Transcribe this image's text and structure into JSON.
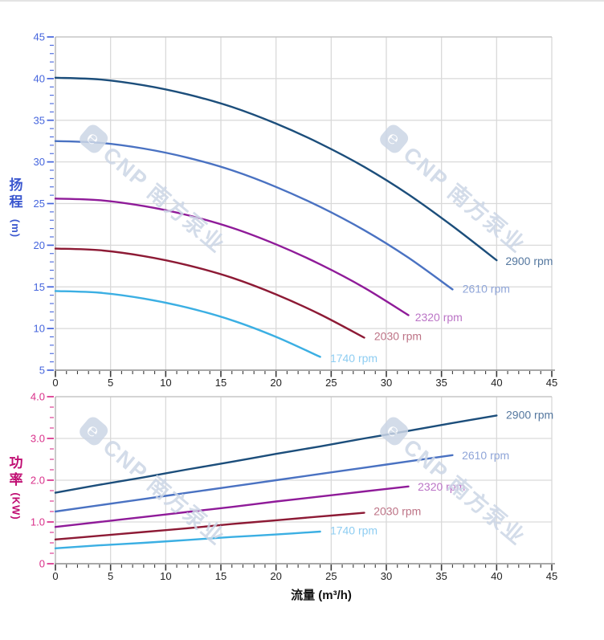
{
  "watermark": {
    "text": "CNP 南方泵业",
    "color": "#ccd6e6"
  },
  "chart_data": [
    {
      "type": "line",
      "id": "head",
      "title": "",
      "xlabel": "流量 (m³/h)",
      "ylabel": "扬程 (m)",
      "y_axis_title": {
        "char1": "扬",
        "char2": "程",
        "unit": "(m)",
        "color": "#3b57cf"
      },
      "xlim": [
        0,
        45
      ],
      "ylim": [
        5,
        45
      ],
      "grid": true,
      "legend_position": "inline-end-of-curve",
      "x_axis": {
        "minor_step": 1,
        "label_color": "#222222",
        "major_ticks": [
          {
            "value": 0,
            "label": "0"
          },
          {
            "value": 5,
            "label": "5"
          },
          {
            "value": 10,
            "label": "10"
          },
          {
            "value": 15,
            "label": "15"
          },
          {
            "value": 20,
            "label": "20"
          },
          {
            "value": 25,
            "label": "25"
          },
          {
            "value": 30,
            "label": "30"
          },
          {
            "value": 35,
            "label": "35"
          },
          {
            "value": 40,
            "label": "40"
          },
          {
            "value": 45,
            "label": "45"
          }
        ]
      },
      "y_axis": {
        "minor_step": 1,
        "label_color": "#4565dd",
        "major_ticks": [
          {
            "value": 45,
            "label": "45"
          },
          {
            "value": 40,
            "label": "40"
          },
          {
            "value": 35,
            "label": "35"
          },
          {
            "value": 30,
            "label": "30"
          },
          {
            "value": 25,
            "label": "25"
          },
          {
            "value": 20,
            "label": "20"
          },
          {
            "value": 15,
            "label": "15"
          },
          {
            "value": 10,
            "label": "10"
          },
          {
            "value": 5,
            "label": "5"
          }
        ]
      },
      "series": [
        {
          "name": "2900 rpm",
          "color": "#1c4e7b",
          "label_color": "#54779f",
          "x": [
            0,
            4,
            8,
            12,
            16,
            20,
            24,
            28,
            32,
            36,
            40
          ],
          "y": [
            40.1,
            39.9,
            39.2,
            38.1,
            36.6,
            34.6,
            32.2,
            29.4,
            26.1,
            22.3,
            18.2
          ],
          "label_anchor": [
            40.8,
            18.1
          ]
        },
        {
          "name": "2610 rpm",
          "color": "#4a72c2",
          "label_color": "#8fa5d8",
          "x": [
            0,
            4,
            8,
            12,
            16,
            20,
            24,
            28,
            32,
            36
          ],
          "y": [
            32.5,
            32.3,
            31.6,
            30.5,
            29.0,
            27.0,
            24.6,
            21.8,
            18.5,
            14.7
          ],
          "label_anchor": [
            36.9,
            14.8
          ]
        },
        {
          "name": "2320 rpm",
          "color": "#8f1b99",
          "label_color": "#bb74c6",
          "x": [
            0,
            4,
            8,
            12,
            16,
            20,
            24,
            28,
            32
          ],
          "y": [
            25.6,
            25.4,
            24.7,
            23.6,
            22.1,
            20.1,
            17.7,
            14.9,
            11.6
          ],
          "label_anchor": [
            32.6,
            11.35
          ]
        },
        {
          "name": "2030 rpm",
          "color": "#8d1a35",
          "label_color": "#bd7386",
          "x": [
            0,
            4,
            8,
            12,
            16,
            20,
            24,
            28
          ],
          "y": [
            19.6,
            19.4,
            18.7,
            17.6,
            16.1,
            14.1,
            11.7,
            8.9
          ],
          "label_anchor": [
            28.9,
            9.1
          ]
        },
        {
          "name": "1740 rpm",
          "color": "#3bafe3",
          "label_color": "#8ecdf2",
          "x": [
            0,
            4,
            8,
            12,
            16,
            20,
            24
          ],
          "y": [
            14.5,
            14.3,
            13.6,
            12.5,
            11.0,
            9.0,
            6.6
          ],
          "label_anchor": [
            24.9,
            6.45
          ]
        }
      ]
    },
    {
      "type": "line",
      "id": "power",
      "title": "",
      "xlabel": "流量 (m³/h)",
      "ylabel": "功率 (KW)",
      "y_axis_title": {
        "char1": "功",
        "char2": "率",
        "unit": "(KW)",
        "color": "#c00d72"
      },
      "xlim": [
        0,
        45
      ],
      "ylim": [
        0,
        4
      ],
      "grid": true,
      "legend_position": "inline-end-of-curve",
      "x_axis": {
        "minor_step": 1,
        "label_color": "#222222",
        "major_ticks": [
          {
            "value": 0,
            "label": "0"
          },
          {
            "value": 5,
            "label": "5"
          },
          {
            "value": 10,
            "label": "10"
          },
          {
            "value": 15,
            "label": "15"
          },
          {
            "value": 20,
            "label": "20"
          },
          {
            "value": 25,
            "label": "25"
          },
          {
            "value": 30,
            "label": "30"
          },
          {
            "value": 35,
            "label": "35"
          },
          {
            "value": 40,
            "label": "40"
          },
          {
            "value": 45,
            "label": "45"
          }
        ]
      },
      "y_axis": {
        "minor_step": 0.25,
        "label_color": "#d9308a",
        "major_ticks": [
          {
            "value": 4,
            "label": "4.0"
          },
          {
            "value": 3,
            "label": "3.0"
          },
          {
            "value": 2,
            "label": "2.0"
          },
          {
            "value": 1,
            "label": "1.0"
          },
          {
            "value": 0,
            "label": "0"
          }
        ]
      },
      "series": [
        {
          "name": "2900 rpm",
          "color": "#1c4e7b",
          "label_color": "#54779f",
          "x": [
            0,
            4,
            8,
            12,
            16,
            20,
            24,
            28,
            32,
            36,
            40
          ],
          "y": [
            1.7,
            1.89,
            2.07,
            2.26,
            2.44,
            2.63,
            2.81,
            3.0,
            3.18,
            3.37,
            3.55
          ],
          "label_anchor": [
            40.85,
            3.57
          ]
        },
        {
          "name": "2610 rpm",
          "color": "#4a72c2",
          "label_color": "#8fa5d8",
          "x": [
            0,
            4,
            8,
            12,
            16,
            20,
            24,
            28,
            32,
            36
          ],
          "y": [
            1.25,
            1.4,
            1.55,
            1.7,
            1.85,
            2.0,
            2.15,
            2.3,
            2.45,
            2.6
          ],
          "label_anchor": [
            36.85,
            2.6
          ]
        },
        {
          "name": "2320 rpm",
          "color": "#8f1b99",
          "label_color": "#bb74c6",
          "x": [
            0,
            4,
            8,
            12,
            16,
            20,
            24,
            28,
            32
          ],
          "y": [
            0.88,
            1.0,
            1.12,
            1.24,
            1.36,
            1.49,
            1.61,
            1.73,
            1.85
          ],
          "label_anchor": [
            32.85,
            1.85
          ]
        },
        {
          "name": "2030 rpm",
          "color": "#8d1a35",
          "label_color": "#bd7386",
          "x": [
            0,
            4,
            8,
            12,
            16,
            20,
            24,
            28
          ],
          "y": [
            0.58,
            0.67,
            0.76,
            0.85,
            0.95,
            1.04,
            1.13,
            1.22
          ],
          "label_anchor": [
            28.85,
            1.26
          ]
        },
        {
          "name": "1740 rpm",
          "color": "#3bafe3",
          "label_color": "#8ecdf2",
          "x": [
            0,
            4,
            8,
            12,
            16,
            20,
            24
          ],
          "y": [
            0.37,
            0.44,
            0.5,
            0.57,
            0.64,
            0.7,
            0.77
          ],
          "label_anchor": [
            24.9,
            0.8
          ]
        }
      ]
    }
  ]
}
